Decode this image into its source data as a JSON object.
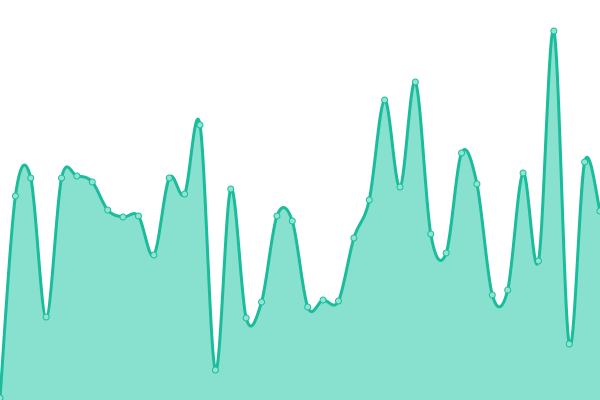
{
  "chart_data": {
    "type": "area",
    "title": "",
    "xlabel": "",
    "ylabel": "",
    "ylim": [
      0,
      400
    ],
    "grid": false,
    "legend": "none",
    "curve": "smooth",
    "x": [
      0,
      1,
      2,
      3,
      4,
      5,
      6,
      7,
      8,
      9,
      10,
      11,
      12,
      13,
      14,
      15,
      16,
      17,
      18,
      19,
      20,
      21,
      22,
      23,
      24,
      25,
      26,
      27,
      28,
      29,
      30,
      31,
      32,
      33,
      34,
      35,
      36,
      37,
      38,
      39
    ],
    "series": [
      {
        "values": [
          2,
          204,
          222,
          83,
          222,
          224,
          218,
          190,
          183,
          184,
          145,
          222,
          206,
          275,
          30,
          211,
          82,
          98,
          184,
          179,
          93,
          100,
          99,
          162,
          200,
          300,
          213,
          318,
          166,
          147,
          247,
          216,
          105,
          110,
          227,
          139,
          369,
          56,
          238,
          189
        ]
      }
    ],
    "colors": {
      "line": "#1abc9c",
      "fill": "#88e0cf",
      "point_fill": "#8ee5d2"
    }
  }
}
